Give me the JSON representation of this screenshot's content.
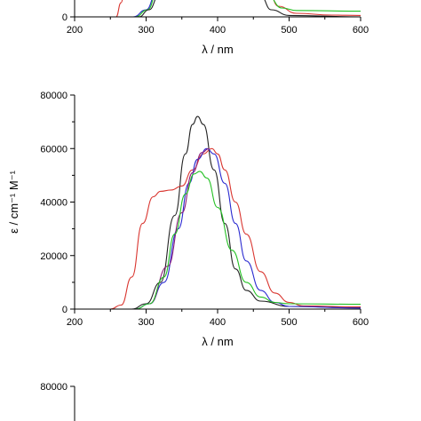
{
  "chart_data": [
    {
      "type": "line",
      "title": "",
      "xlabel": "λ / nm",
      "ylabel": "",
      "xlim": [
        200,
        600
      ],
      "ylim": [
        0,
        80000
      ],
      "xticks": [
        200,
        300,
        400,
        500,
        600
      ],
      "yticks": [
        0
      ],
      "grid": false,
      "legend": "none",
      "series": [
        {
          "color": "#d9352f",
          "values": [
            [
              258,
              0
            ],
            [
              265,
              4000
            ],
            [
              272,
              12000
            ],
            [
              280,
              22000
            ]
          ]
        },
        {
          "color": "#2a2ad0",
          "values": [
            [
              282,
              0
            ],
            [
              300,
              2000
            ],
            [
              315,
              7000
            ],
            [
              325,
              16000
            ],
            [
              330,
              22000
            ]
          ]
        },
        {
          "color": "#22c022",
          "values": [
            [
              285,
              0
            ],
            [
              302,
              2000
            ],
            [
              316,
              7000
            ],
            [
              326,
              14000
            ],
            [
              332,
              22000
            ]
          ]
        },
        {
          "color": "#222222",
          "values": [
            [
              290,
              0
            ],
            [
              304,
              2000
            ],
            [
              318,
              6000
            ],
            [
              328,
              14000
            ],
            [
              334,
              22000
            ]
          ]
        },
        {
          "color": "#222222",
          "values": [
            [
              445,
              22000
            ],
            [
              452,
              12000
            ],
            [
              460,
              6000
            ],
            [
              475,
              2000
            ],
            [
              500,
              400
            ],
            [
              600,
              0
            ]
          ]
        },
        {
          "color": "#d9352f",
          "values": [
            [
              455,
              22000
            ],
            [
              462,
              14000
            ],
            [
              470,
              8000
            ],
            [
              485,
              3000
            ],
            [
              510,
              1000
            ],
            [
              560,
              500
            ],
            [
              600,
              400
            ]
          ]
        },
        {
          "color": "#22c022",
          "values": [
            [
              470,
              6000
            ],
            [
              490,
              2500
            ],
            [
              510,
              1800
            ],
            [
              600,
              1600
            ]
          ]
        }
      ]
    },
    {
      "type": "line",
      "title": "",
      "xlabel": "λ / nm",
      "ylabel": "ε / cm⁻¹ M⁻¹",
      "xlim": [
        200,
        600
      ],
      "ylim": [
        0,
        80000
      ],
      "xticks": [
        200,
        300,
        400,
        500,
        600
      ],
      "yticks": [
        0,
        20000,
        40000,
        60000,
        80000
      ],
      "grid": false,
      "legend": "none",
      "series": [
        {
          "color": "#222222",
          "values": [
            [
              280,
              0
            ],
            [
              300,
              2000
            ],
            [
              320,
              10000
            ],
            [
              340,
              35000
            ],
            [
              355,
              58000
            ],
            [
              365,
              69000
            ],
            [
              372,
              72000
            ],
            [
              380,
              69000
            ],
            [
              395,
              52000
            ],
            [
              410,
              32000
            ],
            [
              425,
              15000
            ],
            [
              440,
              7000
            ],
            [
              460,
              3000
            ],
            [
              500,
              1000
            ],
            [
              600,
              500
            ]
          ]
        },
        {
          "color": "#d9352f",
          "values": [
            [
              250,
              0
            ],
            [
              265,
              1500
            ],
            [
              280,
              12000
            ],
            [
              295,
              32000
            ],
            [
              310,
              42000
            ],
            [
              320,
              44000
            ],
            [
              335,
              44500
            ],
            [
              350,
              46000
            ],
            [
              365,
              52000
            ],
            [
              380,
              58000
            ],
            [
              392,
              60000
            ],
            [
              400,
              58000
            ],
            [
              410,
              52000
            ],
            [
              425,
              40000
            ],
            [
              440,
              28000
            ],
            [
              460,
              14000
            ],
            [
              480,
              6000
            ],
            [
              500,
              2500
            ],
            [
              520,
              1200
            ],
            [
              600,
              800
            ]
          ]
        },
        {
          "color": "#2a2ad0",
          "values": [
            [
              285,
              0
            ],
            [
              305,
              2000
            ],
            [
              325,
              10000
            ],
            [
              345,
              30000
            ],
            [
              360,
              47000
            ],
            [
              372,
              56000
            ],
            [
              385,
              60000
            ],
            [
              395,
              58000
            ],
            [
              410,
              47000
            ],
            [
              425,
              32000
            ],
            [
              440,
              18000
            ],
            [
              460,
              7000
            ],
            [
              480,
              2500
            ],
            [
              500,
              1000
            ],
            [
              600,
              400
            ]
          ]
        },
        {
          "color": "#8b1c7a",
          "values": [
            [
              305,
              2000
            ],
            [
              330,
              16000
            ],
            [
              350,
              36000
            ],
            [
              365,
              51000
            ],
            [
              378,
              58500
            ],
            [
              388,
              60000
            ]
          ]
        },
        {
          "color": "#22c022",
          "values": [
            [
              285,
              0
            ],
            [
              305,
              2000
            ],
            [
              325,
              12000
            ],
            [
              340,
              28000
            ],
            [
              355,
              43000
            ],
            [
              367,
              50500
            ],
            [
              375,
              51500
            ],
            [
              385,
              49000
            ],
            [
              400,
              38000
            ],
            [
              420,
              22000
            ],
            [
              440,
              10000
            ],
            [
              460,
              4500
            ],
            [
              480,
              2500
            ],
            [
              500,
              2000
            ],
            [
              600,
              1800
            ]
          ]
        }
      ]
    },
    {
      "type": "line",
      "title": "",
      "xlabel": "",
      "ylabel": "",
      "xlim": [
        200,
        600
      ],
      "ylim": [
        0,
        80000
      ],
      "yticks": [
        80000
      ],
      "grid": false,
      "legend": "none",
      "series": []
    }
  ]
}
